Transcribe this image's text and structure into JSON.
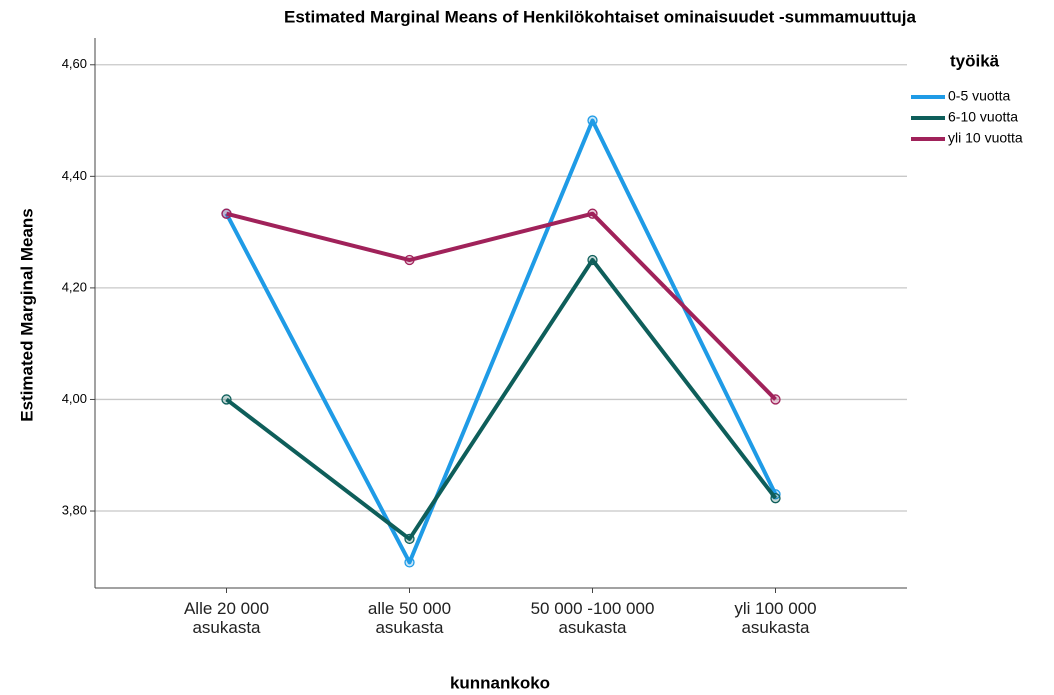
{
  "chart_data": {
    "type": "line",
    "title": "Estimated Marginal Means of Henkilökohtaiset ominaisuudet -summamuuttuja",
    "x_label": "kunnankoko",
    "y_label": "Estimated Marginal Means",
    "legend_title": "työikä",
    "legend_position": "right",
    "categories": [
      "Alle 20 000\nasukasta",
      "alle 50 000\nasukasta",
      "50 000 -100 000\nasukasta",
      "yli 100 000\nasukasta"
    ],
    "series": [
      {
        "name": "0-5 vuotta",
        "color": "#1f9be6",
        "values": [
          4.333,
          3.708,
          4.5,
          3.83
        ]
      },
      {
        "name": "6-10 vuotta",
        "color": "#0e5e5a",
        "values": [
          4.0,
          3.75,
          4.25,
          3.823
        ]
      },
      {
        "name": "yli 10 vuotta",
        "color": "#a0225a",
        "values": [
          4.333,
          4.25,
          4.333,
          4.0
        ]
      }
    ],
    "ylim": [
      3.662,
      4.648
    ],
    "yticks": [
      {
        "value": 3.8,
        "label": "3,80"
      },
      {
        "value": 4.0,
        "label": "4,00"
      },
      {
        "value": 4.2,
        "label": "4,20"
      },
      {
        "value": 4.4,
        "label": "4,40"
      },
      {
        "value": 4.6,
        "label": "4,60"
      }
    ],
    "grid": true
  }
}
